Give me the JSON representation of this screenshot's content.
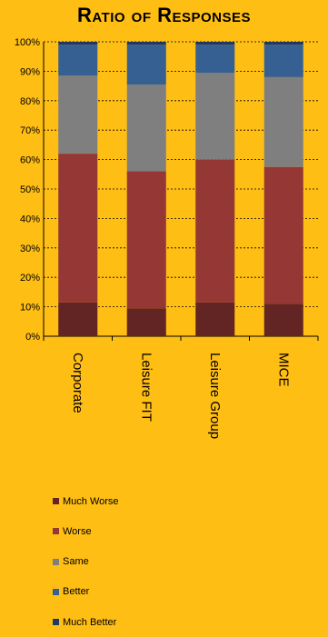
{
  "chart_data": {
    "type": "bar",
    "stacked": true,
    "title": "Ratio of Responses",
    "categories": [
      "Corporate",
      "Leisure FIT",
      "Leisure Group",
      "MICE"
    ],
    "ylim": [
      0,
      100
    ],
    "yticks": [
      "0%",
      "10%",
      "20%",
      "30%",
      "40%",
      "50%",
      "60%",
      "70%",
      "80%",
      "90%",
      "100%"
    ],
    "grid": true,
    "legend_position": "bottom",
    "series": [
      {
        "name": "Much Worse",
        "color": "#632523",
        "values": [
          11.5,
          9.5,
          11.5,
          11.0
        ]
      },
      {
        "name": "Worse",
        "color": "#953735",
        "values": [
          50.5,
          46.5,
          48.5,
          46.5
        ]
      },
      {
        "name": "Same",
        "color": "#7F7F7F",
        "values": [
          26.5,
          29.5,
          29.5,
          30.5
        ]
      },
      {
        "name": "Better",
        "color": "#366092",
        "values": [
          10.5,
          13.5,
          9.5,
          11.0
        ]
      },
      {
        "name": "Much Better",
        "color": "#1F3864",
        "values": [
          1.0,
          1.0,
          1.0,
          1.0
        ]
      }
    ]
  }
}
